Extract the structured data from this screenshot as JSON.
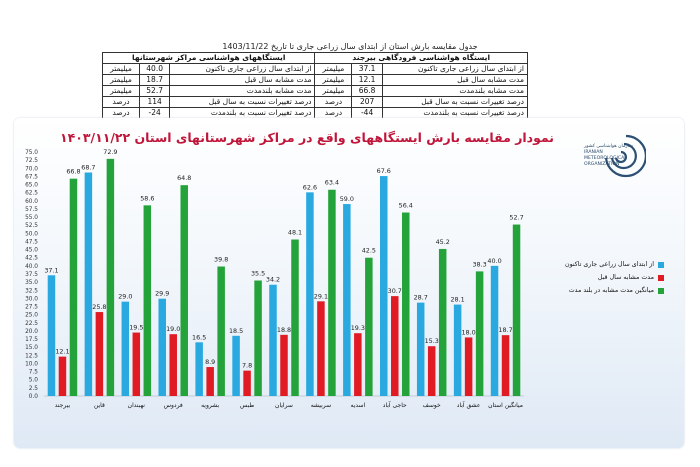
{
  "table": {
    "title": "جدول مقایسه بارش استان از ابتدای سال زراعی جاری تا  تاریخ  1403/11/22",
    "headers": {
      "airport": "ایستگاه هواشناسی فرودگاهی بیرجند",
      "city": "ایستگاههای هواشناسی مراکز شهرستانها"
    },
    "rows": [
      {
        "label": "از ابتدای سال زراعی جاری تاکنون",
        "unit": "میلیمتر",
        "airport": "37.1",
        "city": "40.0"
      },
      {
        "label": "مدت مشابه سال قبل",
        "unit": "میلیمتر",
        "airport": "12.1",
        "city": "18.7"
      },
      {
        "label": "مدت مشابه بلندمدت",
        "unit": "میلیمتر",
        "airport": "66.8",
        "city": "52.7"
      },
      {
        "label": "درصد تغییرات نسبت به سال قبل",
        "unit": "درصد",
        "airport": "207",
        "city": "114"
      },
      {
        "label": "درصد تغییرات نسبت به بلندمدت",
        "unit": "درصد",
        "airport": "-44",
        "city": "-24"
      }
    ]
  },
  "logo": {
    "line1": "سازمان هواشناسی کشور",
    "line2": "IRANIAN",
    "line3": "METEOROLOGICAL",
    "line4": "ORGANIZATION"
  },
  "colors": {
    "current": "#29a9e0",
    "last_year": "#e01b24",
    "long_term": "#24a33a",
    "title": "#c0163a"
  },
  "chart_data": {
    "type": "bar",
    "title": "نمودار مقایسه بارش ایستگاههای واقع در مراکز شهرستانهای استان ۱۴۰۳/۱۱/۲۲",
    "categories": [
      "بیرجند",
      "قاین",
      "نهبندان",
      "فردوس",
      "بشرویه",
      "طبس",
      "سرایان",
      "سربیشه",
      "اسدیه",
      "حاجی آباد",
      "خوسف",
      "عشق آباد",
      "میانگین استان"
    ],
    "series": [
      {
        "name": "از ابتدای سال زراعی جاری تاکنون",
        "values": [
          37.1,
          68.7,
          29.0,
          29.9,
          16.5,
          18.5,
          34.2,
          62.6,
          59.0,
          67.6,
          28.7,
          28.1,
          40.0
        ]
      },
      {
        "name": "مدت مشابه سال قبل",
        "values": [
          12.1,
          25.8,
          19.5,
          19.0,
          8.9,
          7.8,
          18.8,
          29.1,
          19.3,
          30.7,
          15.3,
          18.0,
          18.7
        ]
      },
      {
        "name": "میانگین مدت مشابه در بلند مدت",
        "values": [
          66.8,
          72.9,
          58.6,
          64.8,
          39.8,
          35.5,
          48.1,
          63.4,
          42.5,
          56.4,
          45.2,
          38.3,
          52.7
        ]
      }
    ],
    "ylim": [
      0,
      75
    ],
    "yticks": [
      "0.0",
      "2.5",
      "5.0",
      "7.5",
      "10.0",
      "12.5",
      "15.0",
      "17.5",
      "20.0",
      "22.5",
      "25.0",
      "27.5",
      "30.0",
      "32.5",
      "35.0",
      "37.5",
      "40.0",
      "42.5",
      "45.0",
      "47.5",
      "50.0",
      "52.5",
      "55.0",
      "57.5",
      "60.0",
      "62.5",
      "65.0",
      "67.5",
      "70.0",
      "72.5",
      "75.0"
    ],
    "legend_position": "right",
    "grid": false
  }
}
